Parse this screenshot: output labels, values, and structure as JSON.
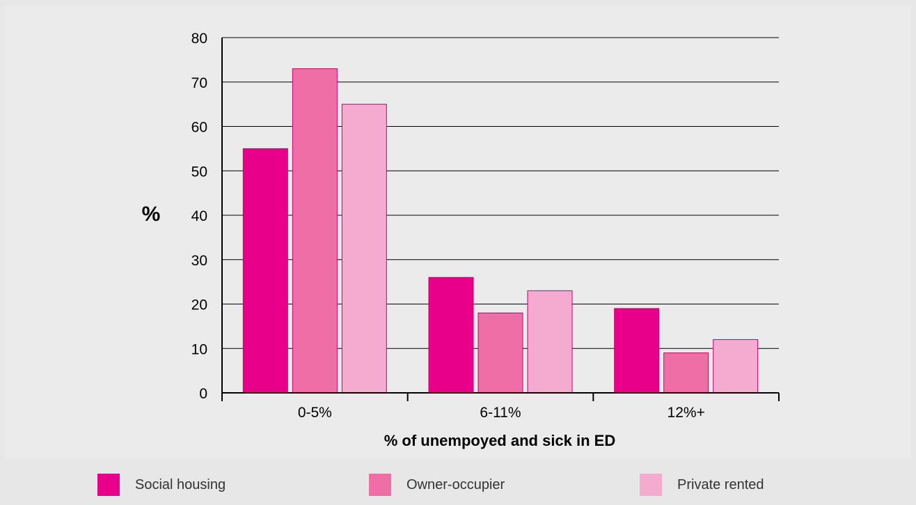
{
  "chart_data": {
    "type": "bar",
    "title": "",
    "xlabel": "% of unempoyed and sick in ED",
    "ylabel": "%",
    "ylim": [
      0,
      80
    ],
    "yticks": [
      0,
      10,
      20,
      30,
      40,
      50,
      60,
      70,
      80
    ],
    "categories": [
      "0-5%",
      "6-11%",
      "12%+"
    ],
    "series": [
      {
        "name": "Social housing",
        "color": "#e8008a",
        "values": [
          55,
          26,
          19
        ]
      },
      {
        "name": "Owner-occupier",
        "color": "#f06ea6",
        "values": [
          73,
          18,
          9
        ]
      },
      {
        "name": "Private rented",
        "color": "#f5abcf",
        "values": [
          65,
          23,
          12
        ]
      }
    ],
    "grid": true,
    "legend_position": "bottom"
  }
}
